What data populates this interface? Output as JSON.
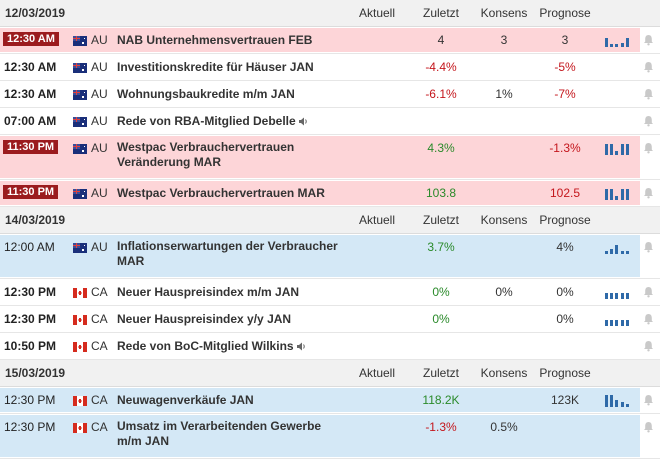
{
  "columns": {
    "actual": "Aktuell",
    "previous": "Zuletzt",
    "consensus": "Konsens",
    "forecast": "Prognose"
  },
  "sections": [
    {
      "date": "12/03/2019",
      "show_headers": true,
      "events": [
        {
          "time": "12:30 AM",
          "time_style": "badge",
          "country": "AU",
          "name": "NAB Unternehmensvertrauen FEB",
          "actual": "",
          "previous": "4",
          "consensus": "3",
          "forecast": "3",
          "prev_color": "neu",
          "fc_color": "neu",
          "highlight": "pink",
          "chart": "pos",
          "lines": 1
        },
        {
          "time": "12:30 AM",
          "time_style": "bold",
          "country": "AU",
          "name": "Investitionskredite für Häuser JAN",
          "actual": "",
          "previous": "-4.4%",
          "consensus": "",
          "forecast": "-5%",
          "prev_color": "neg",
          "fc_color": "neg",
          "highlight": "",
          "chart": "none",
          "lines": 1
        },
        {
          "time": "12:30 AM",
          "time_style": "bold",
          "country": "AU",
          "name": "Wohnungsbaukredite m/m JAN",
          "actual": "",
          "previous": "-6.1%",
          "consensus": "1%",
          "forecast": "-7%",
          "prev_color": "neg",
          "fc_color": "neg",
          "highlight": "",
          "chart": "none",
          "lines": 1
        },
        {
          "time": "07:00 AM",
          "time_style": "bold",
          "country": "AU",
          "name": "Rede von RBA-Mitglied Debelle",
          "speech": true,
          "actual": "",
          "previous": "",
          "consensus": "",
          "forecast": "",
          "prev_color": "neu",
          "fc_color": "neu",
          "highlight": "",
          "chart": "none",
          "lines": 1
        },
        {
          "time": "11:30 PM",
          "time_style": "badge",
          "country": "AU",
          "name": "Westpac Verbrauchervertrauen Veränderung MAR",
          "actual": "",
          "previous": "4.3%",
          "consensus": "",
          "forecast": "-1.3%",
          "prev_color": "pos",
          "fc_color": "neg",
          "highlight": "pink",
          "chart": "bars",
          "lines": 2
        },
        {
          "time": "11:30 PM",
          "time_style": "badge",
          "country": "AU",
          "name": "Westpac Verbrauchervertrauen MAR",
          "actual": "",
          "previous": "103.8",
          "consensus": "",
          "forecast": "102.5",
          "prev_color": "pos",
          "fc_color": "neg",
          "highlight": "pink",
          "chart": "bars",
          "lines": 1
        }
      ]
    },
    {
      "date": "14/03/2019",
      "show_headers": true,
      "events": [
        {
          "time": "12:00 AM",
          "time_style": "normal",
          "country": "AU",
          "name": "Inflationserwartungen der Verbraucher MAR",
          "actual": "",
          "previous": "3.7%",
          "consensus": "",
          "forecast": "4%",
          "prev_color": "pos",
          "fc_color": "neu",
          "highlight": "blue",
          "chart": "spark",
          "lines": 2
        },
        {
          "time": "12:30 PM",
          "time_style": "bold",
          "country": "CA",
          "name": "Neuer Hauspreisindex m/m JAN",
          "actual": "",
          "previous": "0%",
          "consensus": "0%",
          "forecast": "0%",
          "prev_color": "pos",
          "fc_color": "neu",
          "highlight": "",
          "chart": "flat",
          "lines": 1
        },
        {
          "time": "12:30 PM",
          "time_style": "bold",
          "country": "CA",
          "name": "Neuer Hauspreisindex y/y JAN",
          "actual": "",
          "previous": "0%",
          "consensus": "",
          "forecast": "0%",
          "prev_color": "pos",
          "fc_color": "neu",
          "highlight": "",
          "chart": "flat",
          "lines": 1
        },
        {
          "time": "10:50 PM",
          "time_style": "bold",
          "country": "CA",
          "name": "Rede von BoC-Mitglied Wilkins",
          "speech": true,
          "actual": "",
          "previous": "",
          "consensus": "",
          "forecast": "",
          "prev_color": "neu",
          "fc_color": "neu",
          "highlight": "",
          "chart": "none",
          "lines": 1
        }
      ]
    },
    {
      "date": "15/03/2019",
      "show_headers": true,
      "events": [
        {
          "time": "12:30 PM",
          "time_style": "normal",
          "country": "CA",
          "name": "Neuwagenverkäufe JAN",
          "actual": "",
          "previous": "118.2K",
          "consensus": "",
          "forecast": "123K",
          "prev_color": "pos",
          "fc_color": "neu",
          "highlight": "blue",
          "chart": "down",
          "lines": 1
        },
        {
          "time": "12:30 PM",
          "time_style": "normal",
          "country": "CA",
          "name": "Umsatz im Verarbeitenden Gewerbe m/m JAN",
          "actual": "",
          "previous": "-1.3%",
          "consensus": "0.5%",
          "forecast": "",
          "prev_color": "neg",
          "fc_color": "neu",
          "highlight": "blue",
          "chart": "none",
          "lines": 2
        }
      ]
    }
  ]
}
